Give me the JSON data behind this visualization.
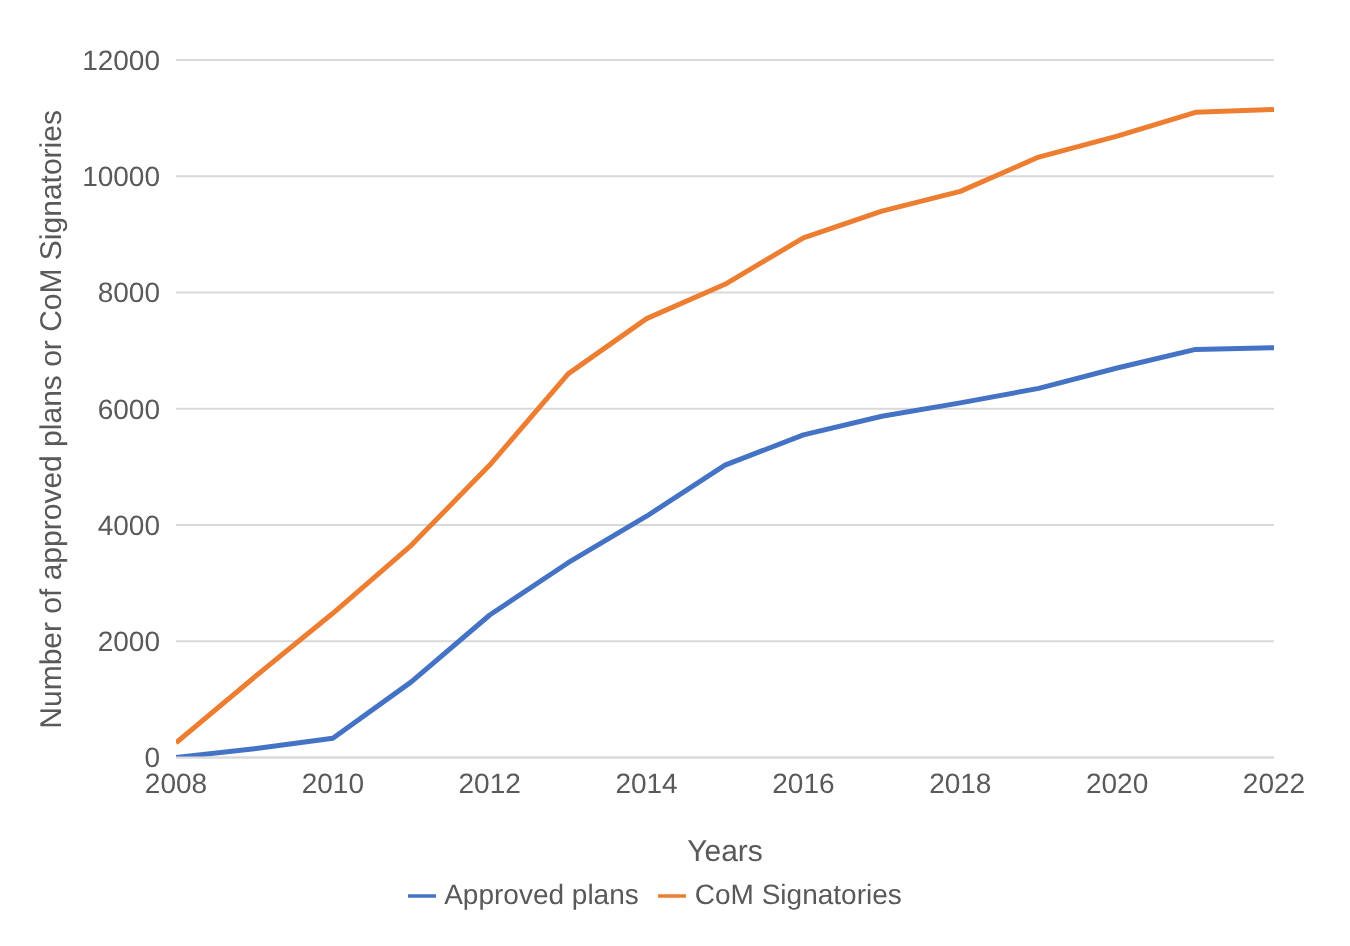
{
  "chart_data": {
    "type": "line",
    "xlabel": "Years",
    "ylabel": "Number of approved plans or CoM Signatories",
    "x": [
      2008,
      2009,
      2010,
      2011,
      2012,
      2013,
      2014,
      2015,
      2016,
      2017,
      2018,
      2019,
      2020,
      2021,
      2022
    ],
    "series": [
      {
        "name": "Approved plans",
        "color": "#4472c4",
        "values": [
          0,
          150,
          330,
          1300,
          2450,
          3350,
          4150,
          5030,
          5550,
          5870,
          6100,
          6350,
          6700,
          7020,
          7050
        ]
      },
      {
        "name": "CoM Signatories",
        "color": "#ed7d31",
        "values": [
          250,
          1380,
          2480,
          3650,
          5030,
          6600,
          7550,
          8140,
          8940,
          9400,
          9740,
          10330,
          10690,
          11100,
          11150
        ]
      }
    ],
    "xlim": [
      2008,
      2022
    ],
    "xticks": [
      2008,
      2010,
      2012,
      2014,
      2016,
      2018,
      2020,
      2022
    ],
    "ylim": [
      0,
      12000
    ],
    "yticks": [
      0,
      2000,
      4000,
      6000,
      8000,
      10000,
      12000
    ],
    "grid": "y",
    "legend": "bottom",
    "marker": "none",
    "line_style": "solid"
  }
}
